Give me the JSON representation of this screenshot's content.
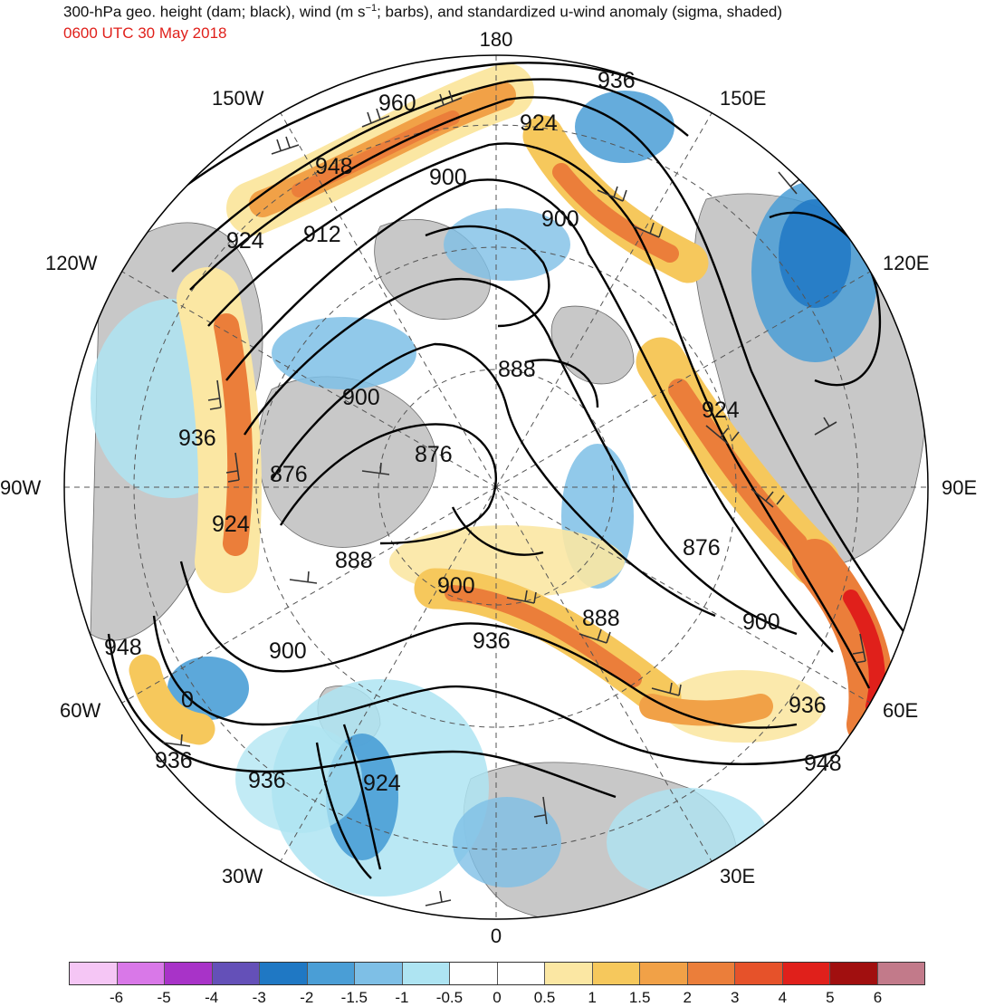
{
  "header": {
    "title_main": "300-hPa geo. height (dam; black), wind (m s",
    "title_sup": "−1",
    "title_tail": "; barbs), and standardized u-wind anomaly (sigma, shaded)",
    "subtitle": "0600 UTC 30 May 2018",
    "subtitle_color": "#e0201b"
  },
  "map": {
    "projection": "north polar stereographic",
    "longitude_labels": {
      "top": "180",
      "bottom": "0",
      "left": "90W",
      "right": "90E",
      "upper_left": "150W",
      "upper_right": "150E",
      "mid_left_upper": "120W",
      "mid_right_upper": "120E",
      "mid_left_lower": "60W",
      "mid_right_lower": "60E",
      "lower_left": "30W",
      "lower_right": "30E"
    },
    "height_contour_labels": [
      "960",
      "948",
      "936",
      "924",
      "900",
      "924",
      "912",
      "900",
      "888",
      "900",
      "936",
      "876",
      "876",
      "924",
      "924",
      "888",
      "876",
      "900",
      "888",
      "936",
      "900",
      "948",
      "900",
      "936",
      "936",
      "924",
      "948",
      "936",
      "0"
    ],
    "colors": {
      "land": "#c8c8c8",
      "contour": "#000000",
      "barb": "#333333",
      "grid": "#555555"
    }
  },
  "colorbar": {
    "unit": "sigma",
    "bins": [
      {
        "color": "#f5c6f5"
      },
      {
        "color": "#d978e8"
      },
      {
        "color": "#a833c8"
      },
      {
        "color": "#6450b8"
      },
      {
        "color": "#1f78c4"
      },
      {
        "color": "#4a9ed6"
      },
      {
        "color": "#7ebfe6"
      },
      {
        "color": "#aee4f2"
      },
      {
        "color": "#ffffff"
      },
      {
        "color": "#ffffff"
      },
      {
        "color": "#fbe7a3"
      },
      {
        "color": "#f6c85c"
      },
      {
        "color": "#f1a147"
      },
      {
        "color": "#eb7e3a"
      },
      {
        "color": "#e6522a"
      },
      {
        "color": "#e0201b"
      },
      {
        "color": "#a10f0f"
      },
      {
        "color": "#c27a8a"
      }
    ],
    "tick_labels": [
      "-6",
      "-5",
      "-4",
      "-3",
      "-2",
      "-1.5",
      "-1",
      "-0.5",
      "0",
      "0.5",
      "1",
      "1.5",
      "2",
      "3",
      "4",
      "5",
      "6"
    ]
  }
}
